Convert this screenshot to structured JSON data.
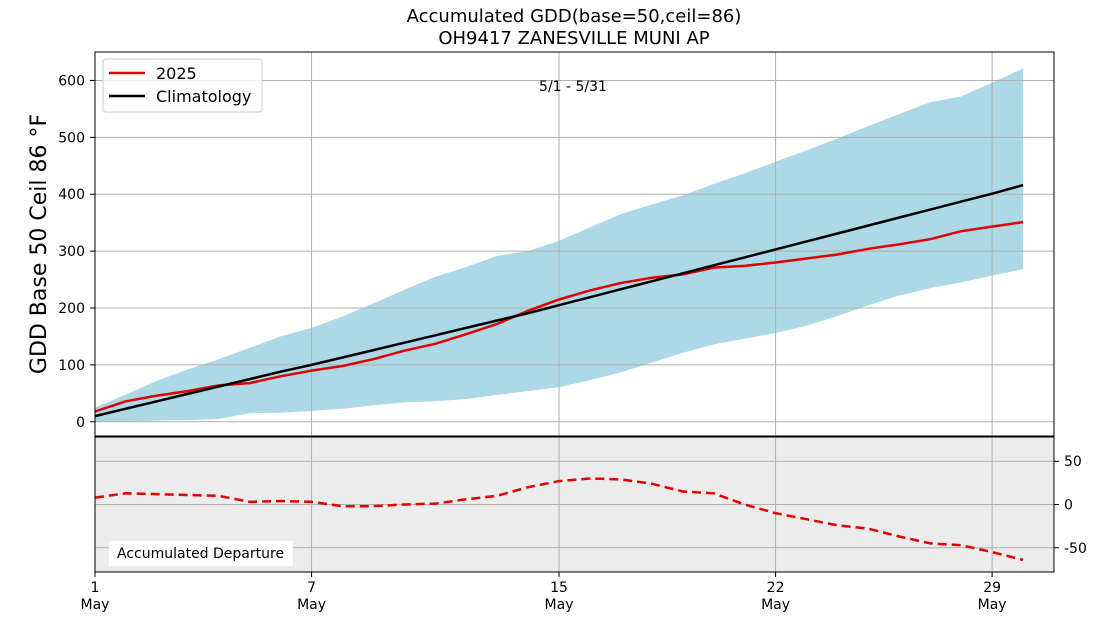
{
  "chart_data": {
    "type": "line",
    "title": "Accumulated GDD(base=50,ceil=86)",
    "subtitle": "OH9417 ZANESVILLE MUNI AP",
    "date_range_label": "5/1 - 5/31",
    "main": {
      "ylabel": "GDD Base 50 Ceil 86 °F",
      "ylim": [
        -25,
        650
      ],
      "yticks": [
        0,
        100,
        200,
        300,
        400,
        500,
        600
      ],
      "xlim": [
        1,
        32
      ],
      "grid": true,
      "legend": {
        "placement": "top-left",
        "entries": [
          "2025",
          "Climatology"
        ]
      },
      "x": [
        1,
        2,
        3,
        4,
        5,
        6,
        7,
        8,
        9,
        10,
        11,
        12,
        13,
        14,
        15,
        16,
        17,
        18,
        19,
        20,
        21,
        22,
        23,
        24,
        25,
        26,
        27,
        28,
        29,
        30,
        31
      ],
      "series": [
        {
          "name": "2025",
          "color": "#e00000",
          "values": [
            18,
            36,
            46,
            54,
            64,
            68,
            80,
            90,
            98,
            110,
            125,
            137,
            154,
            172,
            195,
            215,
            231,
            244,
            253,
            259,
            271,
            274,
            280,
            287,
            294,
            304,
            312,
            321,
            335,
            343,
            351
          ]
        },
        {
          "name": "Climatology",
          "color": "#000000",
          "values": [
            10,
            23,
            36,
            49,
            62,
            75,
            88,
            100,
            113,
            126,
            139,
            152,
            165,
            178,
            191,
            205,
            219,
            233,
            247,
            261,
            275,
            289,
            303,
            317,
            331,
            345,
            359,
            373,
            387,
            401,
            416
          ]
        }
      ],
      "range_band": {
        "color": "#add8e6",
        "upper": [
          25,
          48,
          72,
          92,
          110,
          130,
          150,
          165,
          185,
          208,
          232,
          255,
          272,
          292,
          300,
          318,
          342,
          365,
          382,
          398,
          418,
          437,
          457,
          477,
          498,
          520,
          541,
          562,
          572,
          596,
          621
        ],
        "lower": [
          0,
          0,
          2,
          3,
          5,
          15,
          16,
          19,
          23,
          29,
          34,
          36,
          40,
          47,
          54,
          61,
          73,
          87,
          104,
          121,
          136,
          146,
          156,
          169,
          186,
          205,
          222,
          235,
          245,
          257,
          268
        ]
      }
    },
    "departure": {
      "label": "Accumulated Departure",
      "ylim": [
        -78,
        78
      ],
      "yticks": [
        50,
        0,
        -50
      ],
      "color": "#e00000",
      "style": "dashed",
      "values": [
        8,
        13,
        12,
        11,
        10,
        3,
        4,
        3,
        -2,
        -2,
        0,
        1,
        6,
        10,
        20,
        27,
        30,
        29,
        24,
        15,
        13,
        0,
        -10,
        -17,
        -24,
        -28,
        -37,
        -45,
        -47,
        -55,
        -64
      ]
    },
    "x_ticks": [
      {
        "value": 1,
        "day": "1",
        "month": "May"
      },
      {
        "value": 8,
        "day": "7",
        "month": "May"
      },
      {
        "value": 16,
        "day": "15",
        "month": "May"
      },
      {
        "value": 23,
        "day": "22",
        "month": "May"
      },
      {
        "value": 30,
        "day": "29",
        "month": "May"
      }
    ]
  }
}
